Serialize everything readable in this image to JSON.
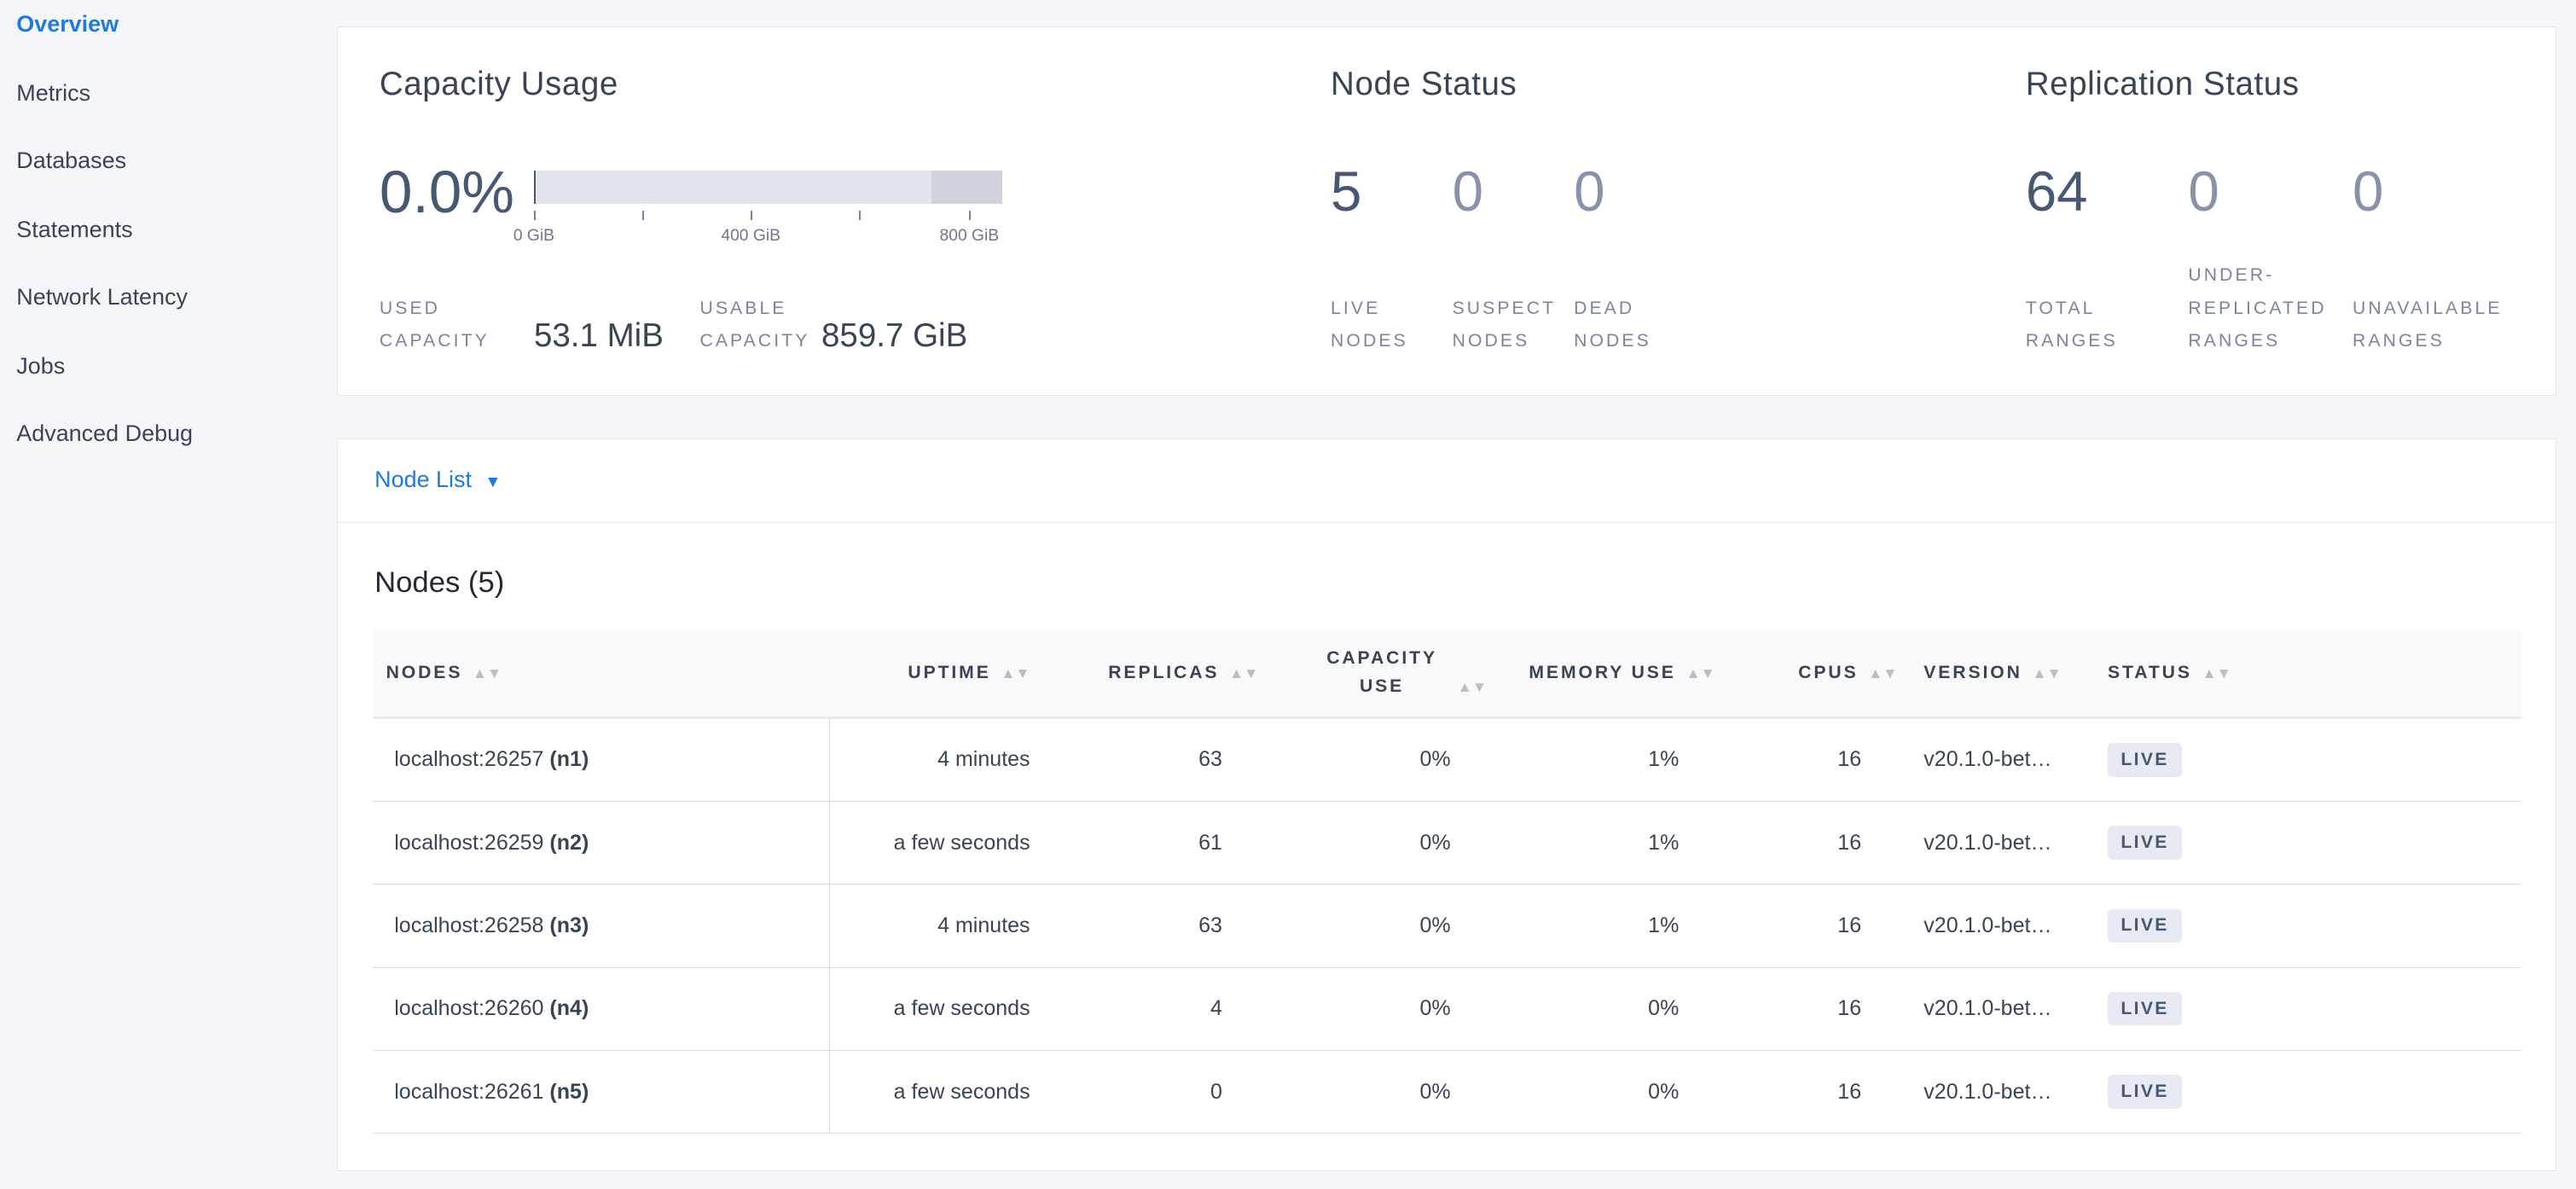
{
  "sidebar": {
    "items": [
      {
        "label": "Overview",
        "active": true
      },
      {
        "label": "Metrics"
      },
      {
        "label": "Databases"
      },
      {
        "label": "Statements"
      },
      {
        "label": "Network Latency"
      },
      {
        "label": "Jobs"
      },
      {
        "label": "Advanced Debug"
      }
    ]
  },
  "capacity": {
    "title": "Capacity Usage",
    "percent": "0.0%",
    "used_fraction": 0.0,
    "ticks": [
      "0 GiB",
      "400 GiB",
      "800 GiB"
    ],
    "used_label": [
      "USED",
      "CAPACITY"
    ],
    "used_value": "53.1 MiB",
    "usable_label": [
      "USABLE",
      "CAPACITY"
    ],
    "usable_value": "859.7 GiB"
  },
  "node_status": {
    "title": "Node Status",
    "stats": [
      {
        "value": "5",
        "label": [
          "LIVE",
          "NODES"
        ]
      },
      {
        "value": "0",
        "label": [
          "SUSPECT",
          "NODES"
        ]
      },
      {
        "value": "0",
        "label": [
          "DEAD",
          "NODES"
        ]
      }
    ]
  },
  "replication": {
    "title": "Replication Status",
    "stats": [
      {
        "value": "64",
        "label": [
          "",
          "TOTAL",
          "RANGES"
        ]
      },
      {
        "value": "0",
        "label": [
          "UNDER-",
          "REPLICATED",
          "RANGES"
        ]
      },
      {
        "value": "0",
        "label": [
          "",
          "UNAVAILABLE",
          "RANGES"
        ]
      }
    ]
  },
  "node_list": {
    "dropdown": "Node List",
    "heading": "Nodes (5)",
    "columns": [
      "NODES",
      "UPTIME",
      "REPLICAS",
      "CAPACITY USE",
      "MEMORY USE",
      "CPUS",
      "VERSION",
      "STATUS"
    ],
    "rows": [
      {
        "host": "localhost:26257",
        "id": "(n1)",
        "uptime": "4 minutes",
        "replicas": "63",
        "capacity": "0%",
        "memory": "1%",
        "cpus": "16",
        "version": "v20.1.0-bet…",
        "status": "LIVE"
      },
      {
        "host": "localhost:26259",
        "id": "(n2)",
        "uptime": "a few seconds",
        "replicas": "61",
        "capacity": "0%",
        "memory": "1%",
        "cpus": "16",
        "version": "v20.1.0-bet…",
        "status": "LIVE"
      },
      {
        "host": "localhost:26258",
        "id": "(n3)",
        "uptime": "4 minutes",
        "replicas": "63",
        "capacity": "0%",
        "memory": "1%",
        "cpus": "16",
        "version": "v20.1.0-bet…",
        "status": "LIVE"
      },
      {
        "host": "localhost:26260",
        "id": "(n4)",
        "uptime": "a few seconds",
        "replicas": "4",
        "capacity": "0%",
        "memory": "0%",
        "cpus": "16",
        "version": "v20.1.0-bet…",
        "status": "LIVE"
      },
      {
        "host": "localhost:26261",
        "id": "(n5)",
        "uptime": "a few seconds",
        "replicas": "0",
        "capacity": "0%",
        "memory": "0%",
        "cpus": "16",
        "version": "v20.1.0-bet…",
        "status": "LIVE"
      }
    ]
  }
}
